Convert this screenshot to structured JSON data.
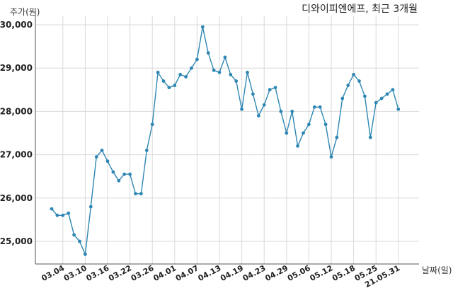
{
  "chart_data": {
    "type": "line",
    "title": "디와이피엔에프, 최근 3개월",
    "ylabel": "주가(원)",
    "xlabel": "날짜(일)",
    "ylim": [
      24500,
      30200
    ],
    "yticks": [
      25000,
      26000,
      27000,
      28000,
      29000,
      30000
    ],
    "ytick_labels": [
      "25,000",
      "26,000",
      "27,000",
      "28,000",
      "29,000",
      "30,000"
    ],
    "grid": true,
    "x_tick_labels": [
      "03.04",
      "03.10",
      "03.16",
      "03.22",
      "03.26",
      "04.01",
      "04.07",
      "04.13",
      "04.19",
      "04.23",
      "04.29",
      "05.06",
      "05.12",
      "05.18",
      "05.25",
      "21.05.31"
    ],
    "x_tick_indices": [
      2,
      6,
      10,
      14,
      18,
      22,
      26,
      30,
      34,
      38,
      42,
      46,
      50,
      54,
      58,
      62
    ],
    "series": [
      {
        "color": "#2e86b3",
        "values": [
          25750,
          25600,
          25600,
          25650,
          25150,
          25000,
          24700,
          25800,
          26950,
          27100,
          26850,
          26600,
          26400,
          26550,
          26550,
          26100,
          26100,
          27100,
          27700,
          28900,
          28700,
          28550,
          28600,
          28850,
          28800,
          29000,
          29200,
          29950,
          29350,
          28950,
          28900,
          29250,
          28850,
          28700,
          28050,
          28900,
          28400,
          27900,
          28150,
          28500,
          28550,
          28000,
          27500,
          28000,
          27200,
          27500,
          27700,
          28100,
          28100,
          27700,
          26950,
          27400,
          28300,
          28600,
          28850,
          28700,
          28350,
          27400,
          28200,
          28300,
          28400,
          28500,
          28050
        ]
      }
    ]
  }
}
